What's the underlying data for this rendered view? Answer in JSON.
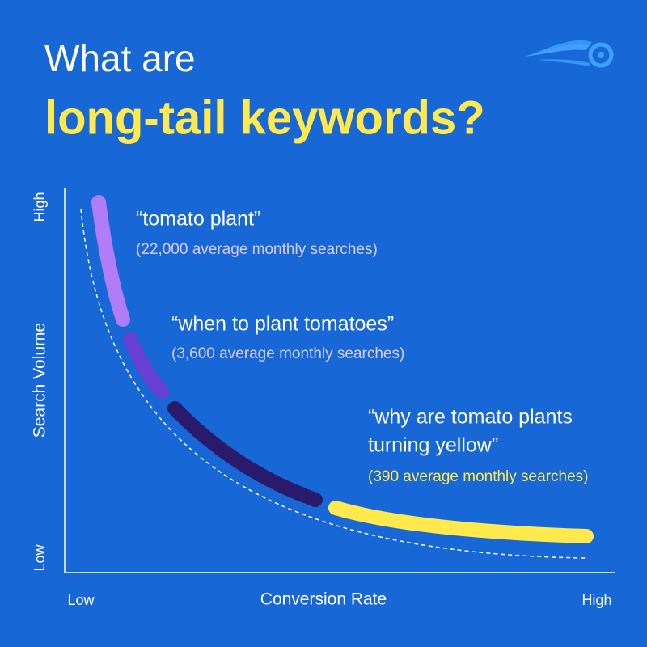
{
  "header": {
    "title_line1": "What are",
    "title_line2": "long-tail keywords?"
  },
  "axes": {
    "y_label": "Search Volume",
    "y_high": "High",
    "y_low": "Low",
    "x_label": "Conversion Rate",
    "x_low": "Low",
    "x_high": "High"
  },
  "annotations": [
    {
      "lines": [
        "“tomato plant”"
      ],
      "searches": "(22,000 average monthly searches)"
    },
    {
      "lines": [
        "“when to plant tomatoes”"
      ],
      "searches": "(3,600 average monthly searches)"
    },
    {
      "lines": [
        "“why are tomato plants",
        "turning yellow”"
      ],
      "searches": "(390 average monthly searches)"
    }
  ]
}
